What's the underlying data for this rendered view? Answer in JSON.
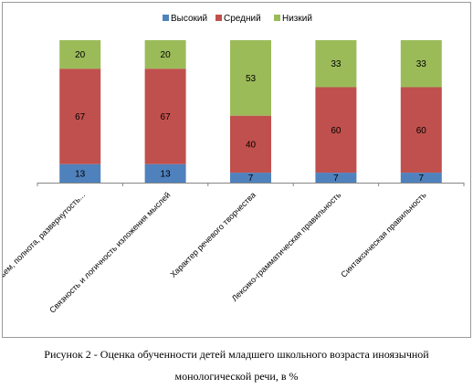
{
  "chart_data": {
    "type": "bar",
    "stacked": true,
    "categories": [
      "Объем, полнота, развернутость...",
      "Связность и логичность изложения мыслей",
      "Характер речевого творчества",
      "Лексико-грамматическая правильность",
      "Синтаксическая правильность"
    ],
    "series": [
      {
        "name": "Высокий",
        "color": "#4f81bd",
        "values": [
          13,
          13,
          7,
          7,
          7
        ]
      },
      {
        "name": "Средний",
        "color": "#c0504d",
        "values": [
          67,
          67,
          40,
          60,
          60
        ]
      },
      {
        "name": "Низкий",
        "color": "#9bbb59",
        "values": [
          20,
          20,
          53,
          33,
          33
        ]
      }
    ],
    "ylim": [
      0,
      100
    ],
    "legend_position": "top",
    "grid": false
  },
  "caption": {
    "line1": "Рисунок 2 - Оценка обученности детей младшего школьного возраста иноязычной",
    "line2": "монологической речи, в %"
  }
}
